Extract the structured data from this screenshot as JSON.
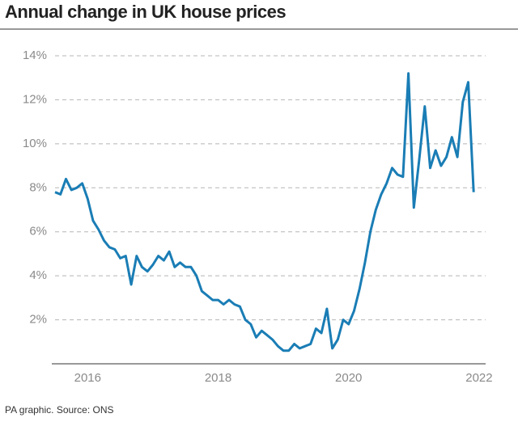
{
  "chart_data": {
    "type": "line",
    "title": "Annual change in UK house prices",
    "source": "PA graphic. Source: ONS",
    "x": [
      2015.5,
      2015.583,
      2015.667,
      2015.75,
      2015.833,
      2015.917,
      2016,
      2016.083,
      2016.167,
      2016.25,
      2016.333,
      2016.417,
      2016.5,
      2016.583,
      2016.667,
      2016.75,
      2016.833,
      2016.917,
      2017,
      2017.083,
      2017.167,
      2017.25,
      2017.333,
      2017.417,
      2017.5,
      2017.583,
      2017.667,
      2017.75,
      2017.833,
      2017.917,
      2018,
      2018.083,
      2018.167,
      2018.25,
      2018.333,
      2018.417,
      2018.5,
      2018.583,
      2018.667,
      2018.75,
      2018.833,
      2018.917,
      2019,
      2019.083,
      2019.167,
      2019.25,
      2019.333,
      2019.417,
      2019.5,
      2019.583,
      2019.667,
      2019.75,
      2019.833,
      2019.917,
      2020,
      2020.083,
      2020.167,
      2020.25,
      2020.333,
      2020.417,
      2020.5,
      2020.583,
      2020.667,
      2020.75,
      2020.833,
      2020.917,
      2021,
      2021.083,
      2021.167,
      2021.25,
      2021.333,
      2021.417,
      2021.5,
      2021.583,
      2021.667,
      2021.75,
      2021.833,
      2021.917
    ],
    "series": [
      {
        "name": "Annual change",
        "color": "#1a7db5",
        "values": [
          7.8,
          7.7,
          8.4,
          7.9,
          8.0,
          8.2,
          7.5,
          6.5,
          6.1,
          5.6,
          5.3,
          5.2,
          4.8,
          4.9,
          3.6,
          4.9,
          4.4,
          4.2,
          4.5,
          4.9,
          4.7,
          5.1,
          4.4,
          4.6,
          4.4,
          4.4,
          4.0,
          3.3,
          3.1,
          2.9,
          2.9,
          2.7,
          2.9,
          2.7,
          2.6,
          2.0,
          1.8,
          1.2,
          1.5,
          1.3,
          1.1,
          0.8,
          0.6,
          0.6,
          0.9,
          0.7,
          0.8,
          0.9,
          1.6,
          1.4,
          2.5,
          0.7,
          1.1,
          2.0,
          1.8,
          2.4,
          3.4,
          4.6,
          6.0,
          7.0,
          7.7,
          8.2,
          8.9,
          8.6,
          8.5,
          13.2,
          7.1,
          9.3,
          11.7,
          8.9,
          9.7,
          9.0,
          9.4,
          10.3,
          9.4,
          11.9,
          12.8,
          7.8
        ]
      }
    ],
    "xlim": [
      2015.5,
      2022.1
    ],
    "xticks": [
      2016,
      2018,
      2020,
      2022
    ],
    "ylim": [
      0,
      14
    ],
    "yticks": [
      {
        "value": 2,
        "label": "2%"
      },
      {
        "value": 4,
        "label": "4%"
      },
      {
        "value": 6,
        "label": "6%"
      },
      {
        "value": 8,
        "label": "8%"
      },
      {
        "value": 10,
        "label": "10%"
      },
      {
        "value": 12,
        "label": "12%"
      },
      {
        "value": 14,
        "label": "14%"
      }
    ],
    "grid": true
  }
}
